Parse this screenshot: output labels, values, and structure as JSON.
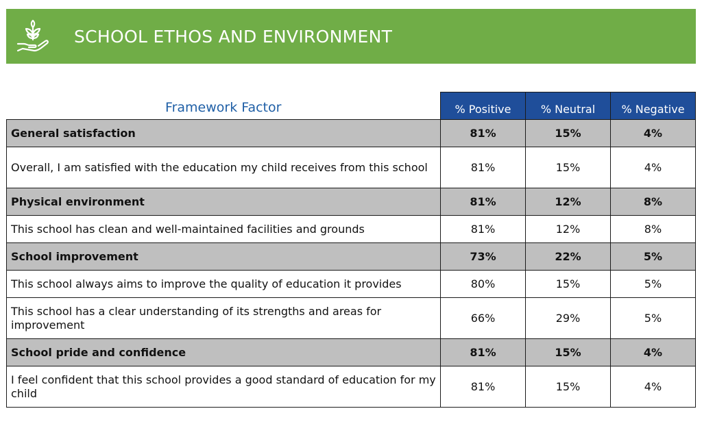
{
  "header": {
    "title": "SCHOOL ETHOS AND ENVIRONMENT",
    "icon": "hand-plant-icon",
    "color": "#70ad47"
  },
  "table": {
    "columns": [
      "Framework Factor",
      "% Positive",
      "% Neutral",
      "% Negative"
    ],
    "header_color": "#1f4e9a",
    "rows": [
      {
        "type": "group",
        "label": "General satisfaction",
        "positive": "81%",
        "neutral": "15%",
        "negative": "4%"
      },
      {
        "type": "item",
        "label": "Overall, I am satisfied with the education my child receives from this school",
        "positive": "81%",
        "neutral": "15%",
        "negative": "4%"
      },
      {
        "type": "group",
        "label": "Physical environment",
        "positive": "81%",
        "neutral": "12%",
        "negative": "8%"
      },
      {
        "type": "item",
        "label": "This school has clean and well-maintained facilities and grounds",
        "positive": "81%",
        "neutral": "12%",
        "negative": "8%"
      },
      {
        "type": "group",
        "label": "School improvement",
        "positive": "73%",
        "neutral": "22%",
        "negative": "5%"
      },
      {
        "type": "item",
        "label": "This school always aims to improve the quality of education it provides",
        "positive": "80%",
        "neutral": "15%",
        "negative": "5%"
      },
      {
        "type": "item",
        "label": "This school has a clear understanding of its strengths and areas for improvement",
        "positive": "66%",
        "neutral": "29%",
        "negative": "5%"
      },
      {
        "type": "group",
        "label": "School pride and confidence",
        "positive": "81%",
        "neutral": "15%",
        "negative": "4%"
      },
      {
        "type": "item",
        "label": "I feel confident that this school provides a good standard of education for my child",
        "positive": "81%",
        "neutral": "15%",
        "negative": "4%"
      }
    ]
  }
}
